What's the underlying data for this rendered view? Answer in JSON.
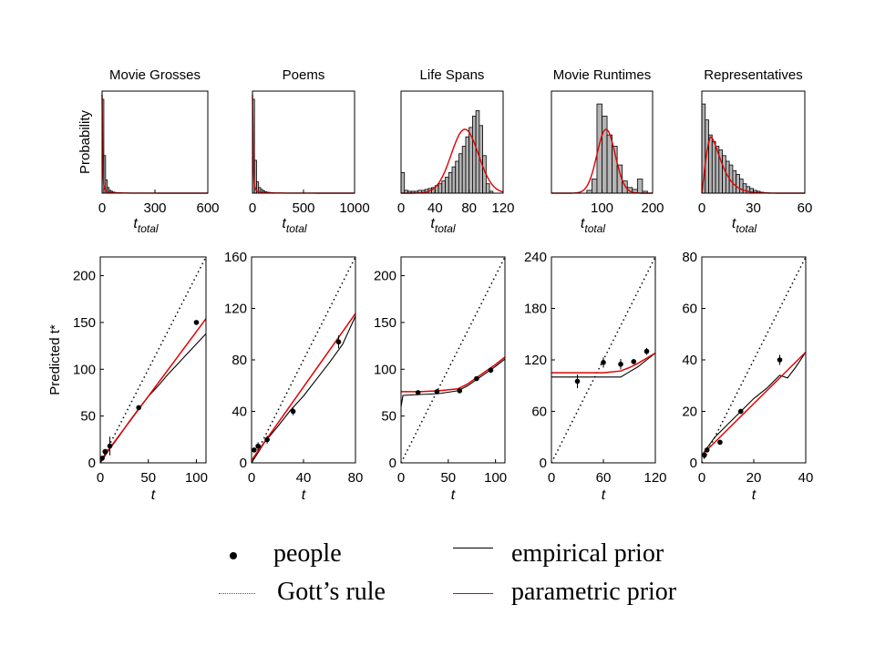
{
  "chart_data": [
    {
      "type": "histogram",
      "title": "Movie Grosses",
      "ylabel": "Probability",
      "xlabel_main": "t",
      "xlabel_sub": "total",
      "xlim": [
        0,
        600
      ],
      "xticks": [
        0,
        300,
        600
      ],
      "bin_width": 10,
      "bar_heights": [
        1.0,
        0.4,
        0.14,
        0.06,
        0.03,
        0.02,
        0.012,
        0.008,
        0.006,
        0.004,
        0.003,
        0.002
      ],
      "fit_curve": "power",
      "fit_x0": 2
    },
    {
      "type": "histogram",
      "title": "Poems",
      "ylabel": "",
      "xlabel_main": "t",
      "xlabel_sub": "total",
      "xlim": [
        0,
        1000
      ],
      "xticks": [
        0,
        500,
        1000
      ],
      "bin_width": 20,
      "bar_heights": [
        1.0,
        0.35,
        0.12,
        0.06,
        0.04,
        0.025,
        0.015,
        0.01,
        0.008,
        0.005
      ],
      "fit_curve": "power",
      "fit_x0": 4
    },
    {
      "type": "histogram",
      "title": "Life Spans",
      "ylabel": "",
      "xlabel_main": "t",
      "xlabel_sub": "total",
      "xlim": [
        0,
        120
      ],
      "xticks": [
        0,
        40,
        80,
        120
      ],
      "bin_width": 4,
      "bar_heights": [
        0.22,
        0.03,
        0.02,
        0.02,
        0.02,
        0.03,
        0.03,
        0.04,
        0.05,
        0.06,
        0.08,
        0.1,
        0.13,
        0.17,
        0.22,
        0.28,
        0.34,
        0.42,
        0.5,
        0.6,
        0.7,
        0.82,
        0.88,
        0.72,
        0.4,
        0.1,
        0.02,
        0.0,
        0.0,
        0.0
      ],
      "fit_curve": "gaussian",
      "fit_mean": 75,
      "fit_sd": 16,
      "fit_peak": 0.68
    },
    {
      "type": "histogram",
      "title": "Movie Runtimes",
      "ylabel": "",
      "xlabel_main": "t",
      "xlabel_sub": "total",
      "xlim": [
        0,
        200
      ],
      "xticks": [
        100,
        200
      ],
      "bin_width": 10,
      "bar_heights": [
        0,
        0,
        0,
        0,
        0,
        0,
        0,
        0.03,
        0.15,
        0.95,
        0.82,
        0.62,
        0.5,
        0.3,
        0.13,
        0.06,
        0.04,
        0.15,
        0.02,
        0
      ],
      "fit_curve": "gaussian",
      "fit_mean": 108,
      "fit_sd": 18,
      "fit_peak": 0.68
    },
    {
      "type": "histogram",
      "title": "Representatives",
      "ylabel": "",
      "xlabel_main": "t",
      "xlabel_sub": "total",
      "xlim": [
        0,
        60
      ],
      "xticks": [
        0,
        30,
        60
      ],
      "bin_width": 2,
      "bar_heights": [
        0.95,
        0.78,
        0.62,
        0.55,
        0.5,
        0.46,
        0.4,
        0.34,
        0.3,
        0.24,
        0.2,
        0.15,
        0.1,
        0.07,
        0.05,
        0.03,
        0.02,
        0.01,
        0.005,
        0.003
      ],
      "fit_curve": "gamma",
      "fit_peak": 0.6
    },
    {
      "type": "line",
      "ylabel": "Predicted t*",
      "xlabel": "t",
      "xlim": [
        0,
        110
      ],
      "ylim": [
        0,
        220
      ],
      "xticks": [
        0,
        50,
        100
      ],
      "yticks": [
        0,
        50,
        100,
        150,
        200
      ],
      "gott_x": [
        0,
        110
      ],
      "gott_y": [
        0,
        220
      ],
      "empirical_x": [
        0,
        10,
        20,
        30,
        40,
        50,
        60,
        70,
        80,
        90,
        100,
        110
      ],
      "empirical_y": [
        0,
        15,
        29,
        44,
        58,
        71,
        82,
        94,
        105,
        116,
        127,
        138
      ],
      "parametric_x": [
        0,
        110
      ],
      "parametric_y": [
        2,
        154
      ],
      "people_x": [
        2,
        5,
        10,
        40,
        100
      ],
      "people_y": [
        5,
        12,
        18,
        59,
        150
      ],
      "people_err": [
        2,
        3,
        10,
        2,
        2
      ]
    },
    {
      "type": "line",
      "ylabel": "",
      "xlabel": "t",
      "xlim": [
        0,
        80
      ],
      "ylim": [
        0,
        160
      ],
      "xticks": [
        0,
        40,
        80
      ],
      "yticks": [
        0,
        40,
        80,
        120,
        160
      ],
      "gott_x": [
        0,
        80
      ],
      "gott_y": [
        0,
        160
      ],
      "empirical_x": [
        0,
        10,
        20,
        30,
        40,
        50,
        60,
        70,
        80
      ],
      "empirical_y": [
        0,
        16,
        28,
        41,
        52,
        65,
        78,
        92,
        114
      ],
      "parametric_x": [
        0,
        80
      ],
      "parametric_y": [
        2,
        116
      ],
      "people_x": [
        2,
        5,
        12,
        32,
        67
      ],
      "people_y": [
        10,
        13,
        18,
        40,
        94
      ],
      "people_err": [
        2,
        3,
        3,
        3,
        5
      ]
    },
    {
      "type": "line",
      "ylabel": "",
      "xlabel": "t",
      "xlim": [
        0,
        110
      ],
      "ylim": [
        0,
        220
      ],
      "xticks": [
        0,
        50,
        100
      ],
      "yticks": [
        0,
        50,
        100,
        150,
        200
      ],
      "gott_x": [
        0,
        110
      ],
      "gott_y": [
        0,
        220
      ],
      "empirical_x": [
        0,
        2,
        20,
        40,
        60,
        70,
        80,
        90,
        100,
        110
      ],
      "empirical_y": [
        60,
        72,
        73,
        74,
        77,
        82,
        89,
        96,
        103,
        111
      ],
      "parametric_x": [
        0,
        20,
        40,
        60,
        70,
        80,
        90,
        100,
        110
      ],
      "parametric_y": [
        76,
        76,
        77,
        79,
        84,
        91,
        98,
        105,
        113
      ],
      "people_x": [
        18,
        38,
        62,
        80,
        95
      ],
      "people_y": [
        75,
        76,
        77,
        90,
        99
      ],
      "people_err": [
        1,
        2,
        2,
        2,
        3
      ]
    },
    {
      "type": "line",
      "ylabel": "",
      "xlabel": "t",
      "xlim": [
        0,
        120
      ],
      "ylim": [
        0,
        240
      ],
      "xticks": [
        0,
        60,
        120
      ],
      "yticks": [
        0,
        60,
        120,
        180,
        240
      ],
      "gott_x": [
        0,
        120
      ],
      "gott_y": [
        0,
        240
      ],
      "empirical_x": [
        0,
        60,
        80,
        90,
        100,
        110,
        120
      ],
      "empirical_y": [
        100,
        100,
        100,
        106,
        112,
        120,
        128
      ],
      "parametric_x": [
        0,
        60,
        80,
        90,
        100,
        110,
        120
      ],
      "parametric_y": [
        105,
        105,
        107,
        111,
        116,
        122,
        128
      ],
      "people_x": [
        30,
        60,
        80,
        95,
        110
      ],
      "people_y": [
        95,
        117,
        115,
        118,
        130
      ],
      "people_err": [
        8,
        6,
        6,
        3,
        4
      ]
    },
    {
      "type": "line",
      "ylabel": "",
      "xlabel": "t",
      "xlim": [
        0,
        40
      ],
      "ylim": [
        0,
        80
      ],
      "xticks": [
        0,
        20,
        40
      ],
      "yticks": [
        0,
        20,
        40,
        60,
        80
      ],
      "gott_x": [
        0,
        40
      ],
      "gott_y": [
        0,
        80
      ],
      "empirical_x": [
        0,
        5,
        10,
        15,
        20,
        25,
        30,
        33,
        36,
        40
      ],
      "empirical_y": [
        3,
        10,
        15,
        20,
        25,
        29,
        34,
        33,
        37,
        43
      ],
      "parametric_x": [
        0,
        40
      ],
      "parametric_y": [
        3,
        43
      ],
      "people_x": [
        1,
        2,
        7,
        15,
        30
      ],
      "people_y": [
        3,
        5,
        8,
        20,
        40
      ],
      "people_err": [
        1,
        1,
        1,
        1,
        2
      ]
    }
  ],
  "legend": {
    "people": "people",
    "empirical": "empirical prior",
    "gott": "Gott’s rule",
    "parametric": "parametric prior",
    "colors": {
      "empirical": "#000000",
      "parametric": "#e00000",
      "gott": "#000000",
      "bars": "#b4b4b4"
    }
  }
}
